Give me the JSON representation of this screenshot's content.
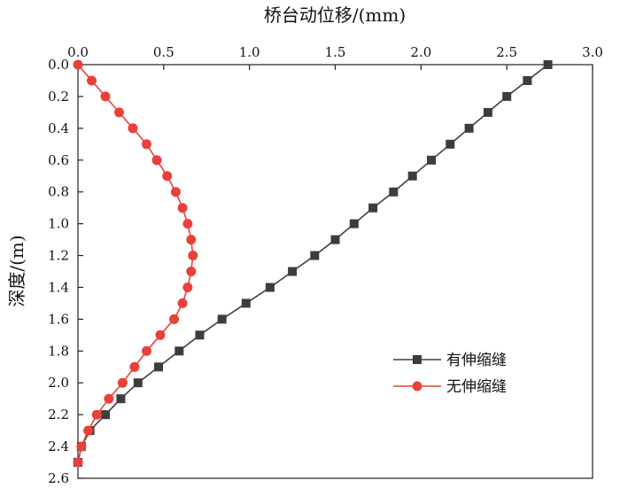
{
  "chart_data": {
    "type": "line",
    "title": "",
    "xlabel": "桥台动位移/(mm)",
    "ylabel": "深度/(m)",
    "xlim": [
      0.0,
      3.0
    ],
    "ylim": [
      0.0,
      2.6
    ],
    "x_axis_position": "top",
    "y_axis_inverted": true,
    "x_ticks": [
      "0.0",
      "0.5",
      "1.0",
      "1.5",
      "2.0",
      "2.5",
      "3.0"
    ],
    "y_ticks": [
      "0.0",
      "0.2",
      "0.4",
      "0.6",
      "0.8",
      "1.0",
      "1.2",
      "1.4",
      "1.6",
      "1.8",
      "2.0",
      "2.2",
      "2.4",
      "2.6"
    ],
    "grid": false,
    "legend_position": "right",
    "series": [
      {
        "name": "有伸缩缝",
        "color": "#3d3d3d",
        "marker": "square",
        "points": [
          {
            "x": 2.74,
            "y": 0.0
          },
          {
            "x": 2.62,
            "y": 0.1
          },
          {
            "x": 2.5,
            "y": 0.2
          },
          {
            "x": 2.39,
            "y": 0.3
          },
          {
            "x": 2.28,
            "y": 0.4
          },
          {
            "x": 2.17,
            "y": 0.5
          },
          {
            "x": 2.06,
            "y": 0.6
          },
          {
            "x": 1.95,
            "y": 0.7
          },
          {
            "x": 1.84,
            "y": 0.8
          },
          {
            "x": 1.72,
            "y": 0.9
          },
          {
            "x": 1.61,
            "y": 1.0
          },
          {
            "x": 1.5,
            "y": 1.1
          },
          {
            "x": 1.38,
            "y": 1.2
          },
          {
            "x": 1.25,
            "y": 1.3
          },
          {
            "x": 1.12,
            "y": 1.4
          },
          {
            "x": 0.98,
            "y": 1.5
          },
          {
            "x": 0.84,
            "y": 1.6
          },
          {
            "x": 0.71,
            "y": 1.7
          },
          {
            "x": 0.59,
            "y": 1.8
          },
          {
            "x": 0.47,
            "y": 1.9
          },
          {
            "x": 0.35,
            "y": 2.0
          },
          {
            "x": 0.25,
            "y": 2.1
          },
          {
            "x": 0.16,
            "y": 2.2
          },
          {
            "x": 0.07,
            "y": 2.3
          },
          {
            "x": 0.02,
            "y": 2.4
          },
          {
            "x": 0.0,
            "y": 2.5
          }
        ]
      },
      {
        "name": "无伸缩缝",
        "color": "#e8413a",
        "marker": "circle",
        "points": [
          {
            "x": 0.0,
            "y": 0.0
          },
          {
            "x": 0.08,
            "y": 0.1
          },
          {
            "x": 0.16,
            "y": 0.2
          },
          {
            "x": 0.24,
            "y": 0.3
          },
          {
            "x": 0.32,
            "y": 0.4
          },
          {
            "x": 0.4,
            "y": 0.5
          },
          {
            "x": 0.46,
            "y": 0.6
          },
          {
            "x": 0.52,
            "y": 0.7
          },
          {
            "x": 0.57,
            "y": 0.8
          },
          {
            "x": 0.61,
            "y": 0.9
          },
          {
            "x": 0.64,
            "y": 1.0
          },
          {
            "x": 0.66,
            "y": 1.1
          },
          {
            "x": 0.67,
            "y": 1.2
          },
          {
            "x": 0.66,
            "y": 1.3
          },
          {
            "x": 0.64,
            "y": 1.4
          },
          {
            "x": 0.61,
            "y": 1.5
          },
          {
            "x": 0.56,
            "y": 1.6
          },
          {
            "x": 0.48,
            "y": 1.7
          },
          {
            "x": 0.4,
            "y": 1.8
          },
          {
            "x": 0.33,
            "y": 1.9
          },
          {
            "x": 0.26,
            "y": 2.0
          },
          {
            "x": 0.18,
            "y": 2.1
          },
          {
            "x": 0.11,
            "y": 2.2
          },
          {
            "x": 0.06,
            "y": 2.3
          },
          {
            "x": 0.02,
            "y": 2.4
          },
          {
            "x": 0.0,
            "y": 2.5
          }
        ]
      }
    ]
  }
}
